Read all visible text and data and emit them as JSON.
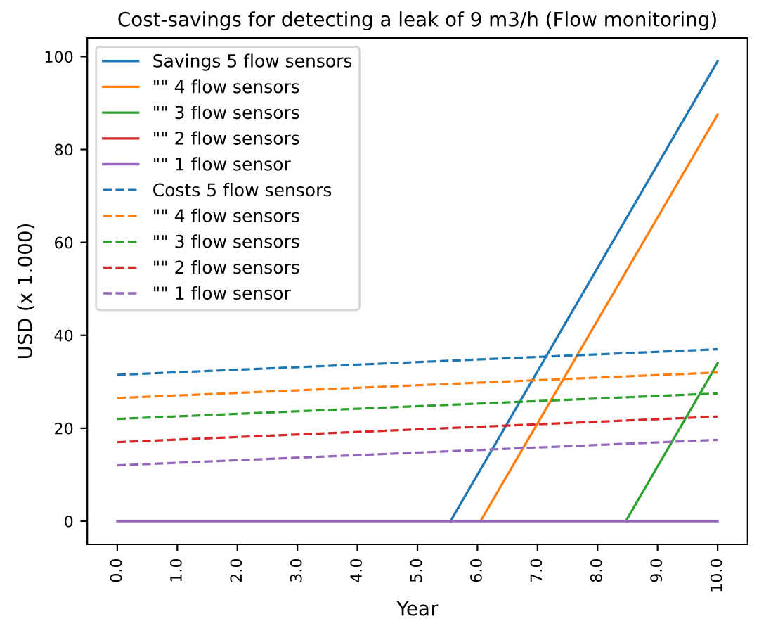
{
  "chart_data": {
    "type": "line",
    "title": "Cost-savings for detecting a leak of 9 m3/h (Flow monitoring)",
    "xlabel": "Year",
    "ylabel": "USD (x 1.000)",
    "xlim": [
      -0.5,
      10.5
    ],
    "xticks": [
      {
        "value": 0,
        "label": "0.0"
      },
      {
        "value": 1,
        "label": "1.0"
      },
      {
        "value": 2,
        "label": "2.0"
      },
      {
        "value": 3,
        "label": "3.0"
      },
      {
        "value": 4,
        "label": "4.0"
      },
      {
        "value": 5,
        "label": "5.0"
      },
      {
        "value": 6,
        "label": "6.0"
      },
      {
        "value": 7,
        "label": "7.0"
      },
      {
        "value": 8,
        "label": "8.0"
      },
      {
        "value": 9,
        "label": "9.0"
      },
      {
        "value": 10,
        "label": "10.0"
      }
    ],
    "ylim": [
      -5,
      104
    ],
    "yticks": [
      0,
      20,
      40,
      60,
      80,
      100
    ],
    "grid": false,
    "legend": "top left",
    "series": [
      {
        "name": "Savings 5 flow sensors",
        "color": "#1f77b4",
        "line_style": "solid",
        "x": [
          5.55,
          10
        ],
        "values": [
          0,
          99
        ]
      },
      {
        "name": "\"\" 4 flow sensors",
        "color": "#ff7f0e",
        "line_style": "solid",
        "x": [
          6.05,
          10
        ],
        "values": [
          0,
          87.5
        ]
      },
      {
        "name": "\"\" 3 flow sensors",
        "color": "#2ca02c",
        "line_style": "solid",
        "x": [
          8.47,
          10
        ],
        "values": [
          0,
          34
        ]
      },
      {
        "name": "\"\" 2 flow sensors",
        "color": "#d62728",
        "line_style": "solid"
      },
      {
        "name": "\"\" 1 flow sensor",
        "color": "#9467bd",
        "line_style": "solid",
        "x": [
          0,
          10
        ],
        "values": [
          0,
          0
        ]
      },
      {
        "name": "Costs 5 flow sensors",
        "color": "#1f77b4",
        "line_style": "dashed",
        "x": [
          0,
          10
        ],
        "values": [
          31.5,
          37
        ]
      },
      {
        "name": "\"\" 4 flow sensors",
        "color": "#ff7f0e",
        "line_style": "dashed",
        "x": [
          0,
          10
        ],
        "values": [
          26.5,
          32
        ]
      },
      {
        "name": "\"\" 3 flow sensors",
        "color": "#2ca02c",
        "line_style": "dashed",
        "x": [
          0,
          10
        ],
        "values": [
          22,
          27.5
        ]
      },
      {
        "name": "\"\" 2 flow sensors",
        "color": "#d62728",
        "line_style": "dashed",
        "x": [
          0,
          10
        ],
        "values": [
          17,
          22.5
        ]
      },
      {
        "name": "\"\" 1 flow sensor",
        "color": "#9467bd",
        "line_style": "dashed",
        "x": [
          0,
          10
        ],
        "values": [
          12,
          17.5
        ]
      }
    ]
  }
}
